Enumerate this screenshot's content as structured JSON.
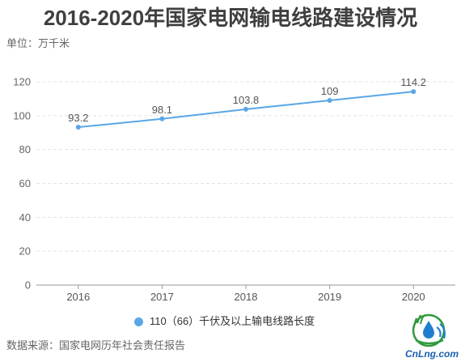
{
  "chart_data": {
    "type": "line",
    "title": "2016-2020年国家电网输电线路建设情况",
    "ylabel": "单位：万千米",
    "x": [
      "2016",
      "2017",
      "2018",
      "2019",
      "2020"
    ],
    "series": [
      {
        "name": "110（66）千伏及以上输电线路长度",
        "values": [
          93.2,
          98.1,
          103.8,
          109,
          114.2
        ]
      }
    ],
    "yticks": [
      0,
      20,
      40,
      60,
      80,
      100,
      120
    ],
    "ylim": [
      0,
      120
    ],
    "grid": true,
    "legend": "bottom"
  },
  "source": "数据来源：国家电网历年社会责任报告",
  "logo": {
    "text": "CnLng.com"
  },
  "colors": {
    "series": "#5aa6e6"
  }
}
